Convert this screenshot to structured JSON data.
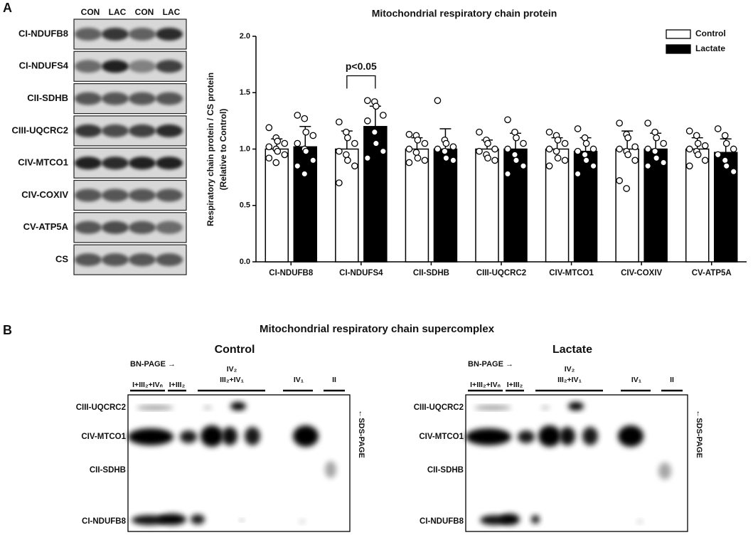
{
  "panel_a": {
    "label": "A",
    "lanes": [
      "CON",
      "LAC",
      "CON",
      "LAC"
    ],
    "blot_rows": [
      "CI-NDUFB8",
      "CI-NDUFS4",
      "CII-SDHB",
      "CIII-UQCRC2",
      "CIV-MTCO1",
      "CIV-COXIV",
      "CV-ATP5A",
      "CS"
    ]
  },
  "chart_data": {
    "type": "bar",
    "title": "Mitochondrial respiratory chain protein",
    "y_label": "Respiratory chain protein / CS protein",
    "y_label_sub": "(Relative to Control)",
    "categories": [
      "CI-NDUFB8",
      "CI-NDUFS4",
      "CII-SDHB",
      "CIII-UQCRC2",
      "CIV-MTCO1",
      "CIV-COXIV",
      "CV-ATP5A"
    ],
    "series": [
      {
        "name": "Control",
        "color": "#ffffff",
        "values": [
          1.0,
          1.0,
          1.0,
          1.0,
          1.0,
          1.0,
          1.0
        ],
        "errors": [
          0.09,
          0.16,
          0.1,
          0.08,
          0.1,
          0.16,
          0.1
        ],
        "points": [
          [
            1.19,
            1.1,
            1.07,
            1.05,
            1.02,
            1.0,
            0.98,
            0.95,
            0.92,
            0.88
          ],
          [
            1.24,
            1.15,
            1.1,
            1.05,
            0.98,
            0.95,
            0.9,
            0.85,
            0.7
          ],
          [
            1.13,
            1.12,
            1.08,
            1.05,
            1.0,
            0.97,
            0.92,
            0.9,
            0.88
          ],
          [
            1.15,
            1.08,
            1.05,
            1.0,
            0.98,
            0.95,
            0.92,
            0.9
          ],
          [
            1.15,
            1.12,
            1.08,
            1.05,
            1.0,
            0.98,
            0.92,
            0.9,
            0.85
          ],
          [
            1.23,
            1.13,
            1.1,
            1.02,
            1.0,
            0.98,
            0.95,
            0.9,
            0.72,
            0.65
          ],
          [
            1.16,
            1.12,
            1.05,
            1.03,
            1.0,
            0.98,
            0.95,
            0.9,
            0.85
          ]
        ]
      },
      {
        "name": "Lactate",
        "color": "#000000",
        "values": [
          1.02,
          1.2,
          1.0,
          1.0,
          0.98,
          1.0,
          0.97
        ],
        "errors": [
          0.18,
          0.18,
          0.18,
          0.14,
          0.12,
          0.14,
          0.12
        ],
        "points": [
          [
            1.3,
            1.27,
            1.15,
            1.12,
            1.05,
            1.0,
            0.98,
            0.9,
            0.85,
            0.78
          ],
          [
            1.43,
            1.42,
            1.38,
            1.3,
            1.25,
            1.15,
            1.05,
            0.98,
            0.92
          ],
          [
            1.43,
            1.08,
            1.05,
            1.02,
            1.0,
            0.98,
            0.92,
            0.9
          ],
          [
            1.26,
            1.15,
            1.1,
            1.05,
            1.0,
            0.95,
            0.9,
            0.85,
            0.78
          ],
          [
            1.18,
            1.1,
            1.05,
            1.0,
            0.98,
            0.95,
            0.9,
            0.85,
            0.78
          ],
          [
            1.23,
            1.15,
            1.1,
            1.05,
            1.0,
            0.98,
            0.92,
            0.88,
            0.85
          ],
          [
            1.18,
            1.12,
            1.05,
            1.0,
            0.95,
            0.9,
            0.85,
            0.8
          ]
        ]
      }
    ],
    "ylim": [
      0,
      2.0
    ],
    "yticks": [
      {
        "value": 0,
        "label": "0.0"
      },
      {
        "value": 0.5,
        "label": "0.5"
      },
      {
        "value": 1,
        "label": "1.0"
      },
      {
        "value": 1.5,
        "label": "1.5"
      },
      {
        "value": 2,
        "label": "2.0"
      }
    ],
    "legend": "upper right",
    "annotation": "p<0.05"
  },
  "panel_b": {
    "label": "B",
    "title": "Mitochondrial respiratory chain supercomplex",
    "bn_page": "BN-PAGE →",
    "sds_page": "←SDS-PAGE",
    "gels": [
      "Control",
      "Lactate"
    ],
    "complexes": [
      "I+III₂+IVₙ",
      "I+III₂",
      "IV₂",
      "III₂+IV₁",
      "IV₁",
      "II"
    ],
    "rows": [
      "CIII-UQCRC2",
      "CIV-MTCO1",
      "CII-SDHB",
      "CI-NDUFB8"
    ]
  }
}
